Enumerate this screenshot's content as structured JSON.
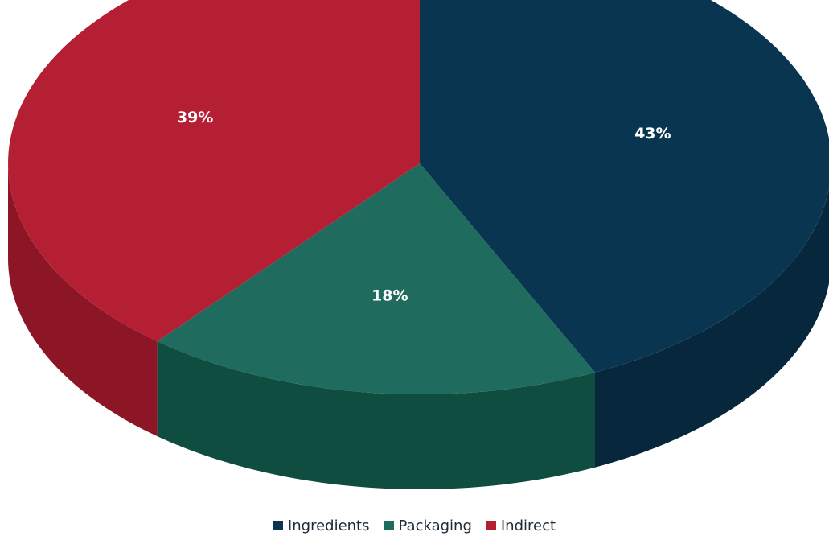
{
  "chart_data": {
    "type": "pie",
    "title": "",
    "categories": [
      "Ingredients",
      "Packaging",
      "Indirect"
    ],
    "values": [
      43,
      18,
      39
    ],
    "labels": [
      "43%",
      "18%",
      "39%"
    ],
    "colors": [
      "#0a3550",
      "#1f6b5e",
      "#b51f33"
    ],
    "side_colors": [
      "#07283c",
      "#0e4d3f",
      "#8c1626"
    ],
    "legend_position": "bottom",
    "style": "3d"
  },
  "legend": {
    "items": [
      {
        "label": "Ingredients",
        "color": "#0a3550"
      },
      {
        "label": "Packaging",
        "color": "#1f6b5e"
      },
      {
        "label": "Indirect",
        "color": "#b51f33"
      }
    ]
  }
}
